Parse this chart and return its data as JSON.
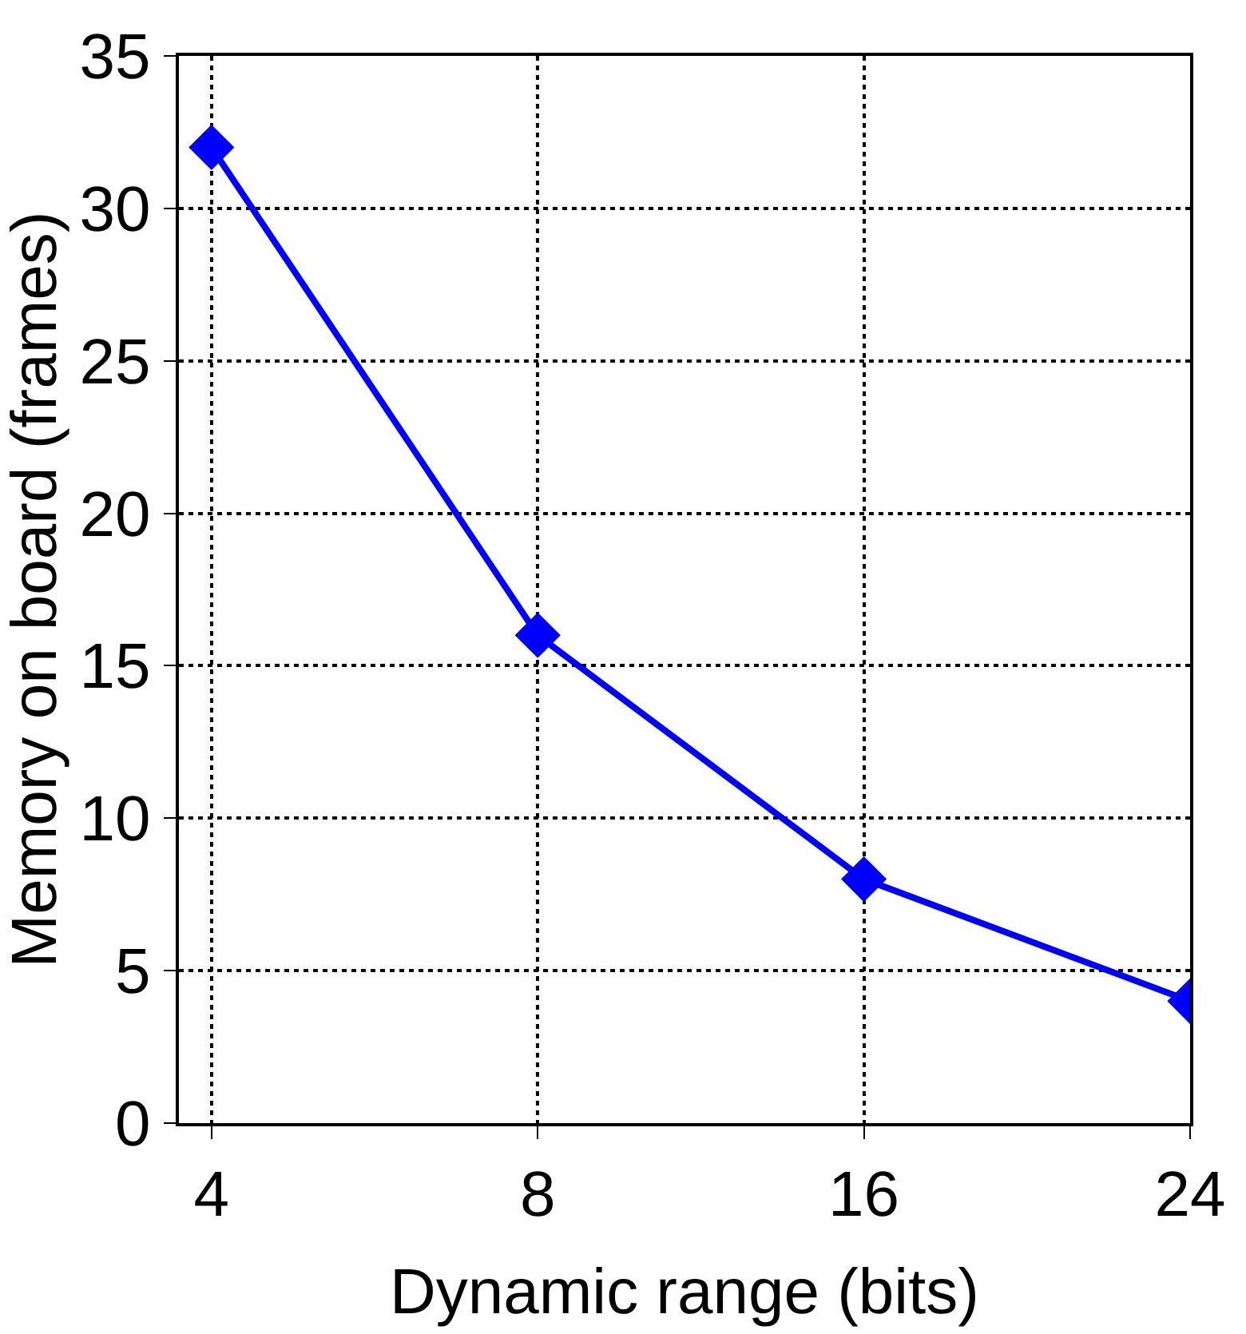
{
  "chart_data": {
    "type": "line",
    "xlabel": "Dynamic range (bits)",
    "ylabel": "Memory on board (frames)",
    "categories": [
      "4",
      "8",
      "16",
      "24"
    ],
    "series": [
      {
        "color": "#0000ff",
        "values": [
          32,
          16,
          8,
          4
        ]
      }
    ],
    "ylim": [
      0,
      35
    ],
    "yticks": [
      0,
      5,
      10,
      15,
      20,
      25,
      30,
      35
    ],
    "grid": true,
    "marker": "diamond",
    "line_style": "solid"
  }
}
